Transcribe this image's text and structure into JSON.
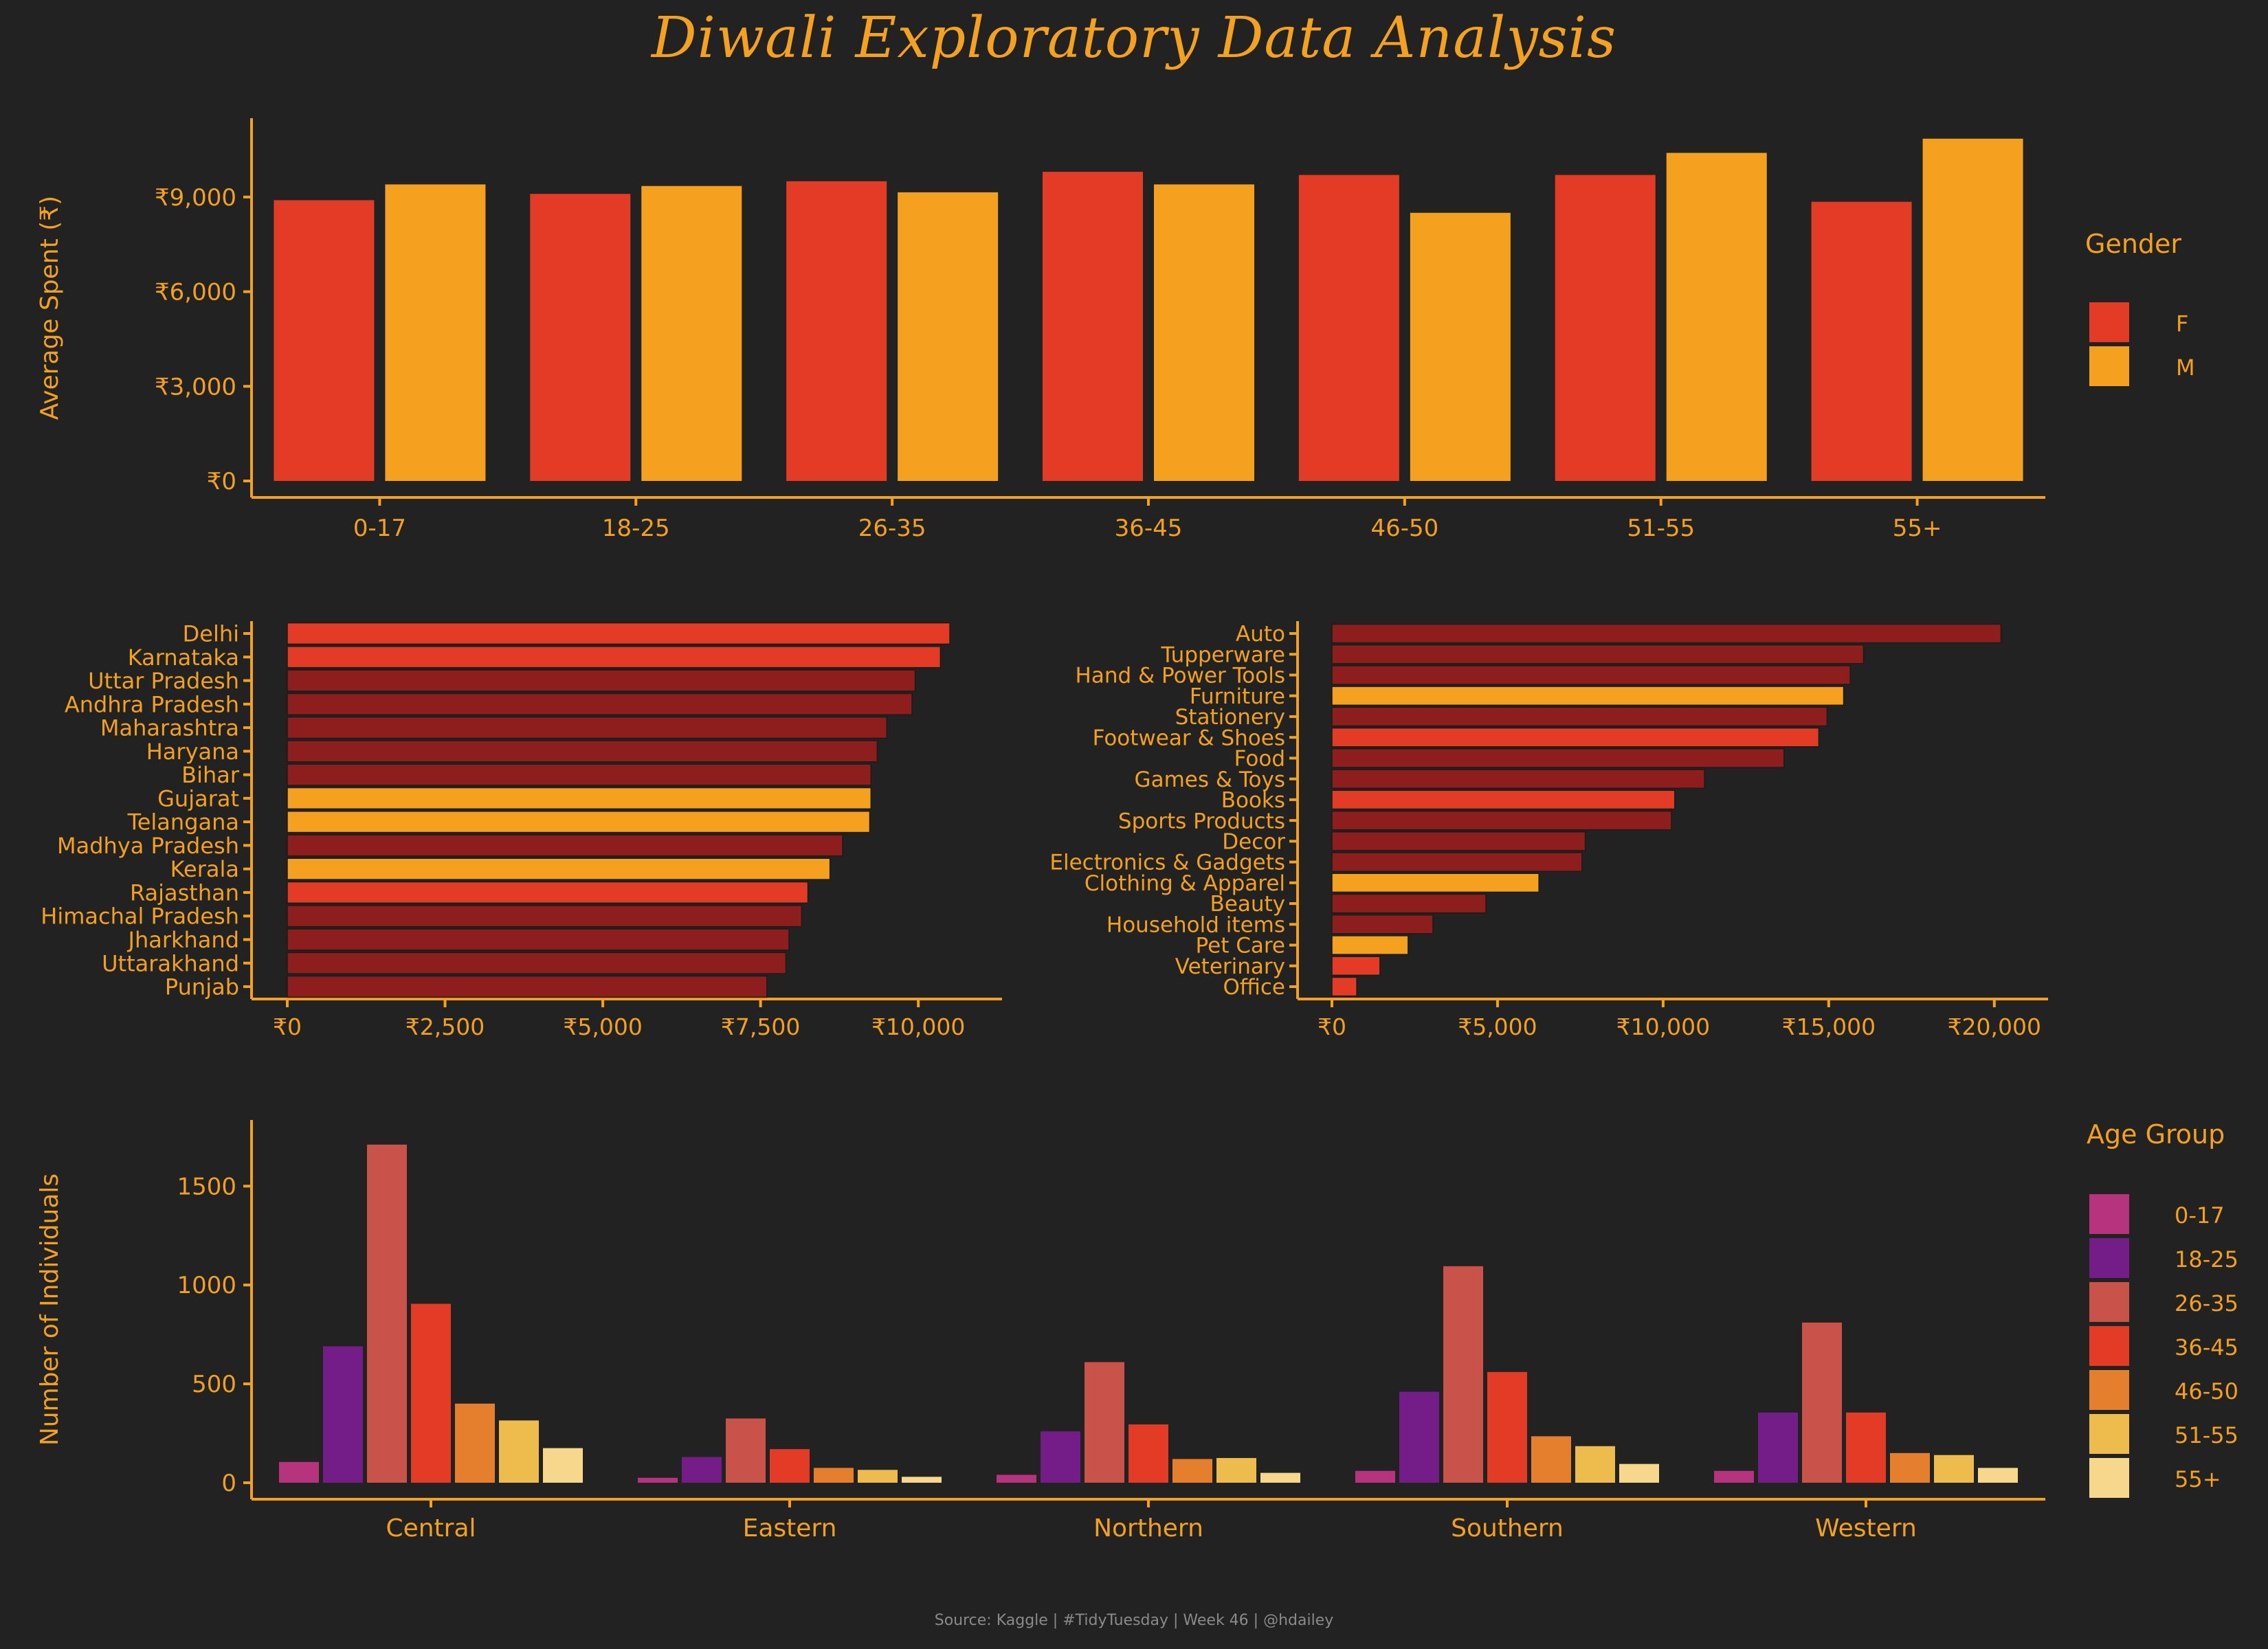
{
  "title": "Diwali Exploratory Data Analysis",
  "caption": "Source: Kaggle | #TidyTuesday | Week 46 | @hdailey",
  "colors": {
    "background": "#222222",
    "text": "#F4A020",
    "axis": "#F4A020",
    "female": "#E33B26",
    "male": "#F6A020",
    "dark_red": "#8E1D1D"
  },
  "chart_data": [
    {
      "id": "spend-by-age-gender",
      "type": "bar",
      "ylabel": "Average Spent (₹)",
      "xlabel": "",
      "categories": [
        "0-17",
        "18-25",
        "26-35",
        "36-45",
        "46-50",
        "51-55",
        "55+"
      ],
      "series": [
        {
          "name": "F",
          "color": "#E33B26",
          "values": [
            8900,
            9100,
            9500,
            9800,
            9700,
            9700,
            8850
          ]
        },
        {
          "name": "M",
          "color": "#F6A020",
          "values": [
            9400,
            9350,
            9150,
            9400,
            8500,
            10400,
            10850
          ]
        }
      ],
      "ylim": [
        0,
        11500
      ],
      "yticks": [
        0,
        3000,
        6000,
        9000
      ],
      "ytick_labels": [
        "₹0",
        "₹3,000",
        "₹6,000",
        "₹9,000"
      ],
      "legend": {
        "title": "Gender",
        "position": "right"
      }
    },
    {
      "id": "spend-by-state",
      "type": "bar",
      "orientation": "horizontal",
      "categories": [
        "Delhi",
        "Karnataka",
        "Uttar Pradesh",
        "Andhra Pradesh",
        "Maharashtra",
        "Haryana",
        "Bihar",
        "Gujarat",
        "Telangana",
        "Madhya Pradesh",
        "Kerala",
        "Rajasthan",
        "Himachal Pradesh",
        "Jharkhand",
        "Uttarakhand",
        "Punjab"
      ],
      "values": [
        10500,
        10350,
        9950,
        9900,
        9500,
        9350,
        9250,
        9250,
        9230,
        8800,
        8600,
        8250,
        8150,
        7950,
        7900,
        7600
      ],
      "colors": [
        "#E33B26",
        "#E33B26",
        "#8E1D1D",
        "#8E1D1D",
        "#8E1D1D",
        "#8E1D1D",
        "#8E1D1D",
        "#F6A020",
        "#F6A020",
        "#8E1D1D",
        "#F6A020",
        "#E33B26",
        "#8E1D1D",
        "#8E1D1D",
        "#8E1D1D",
        "#8E1D1D"
      ],
      "xlim": [
        0,
        11000
      ],
      "xticks": [
        0,
        2500,
        5000,
        7500,
        10000
      ],
      "xtick_labels": [
        "₹0",
        "₹2,500",
        "₹5,000",
        "₹7,500",
        "₹10,000"
      ]
    },
    {
      "id": "spend-by-product",
      "type": "bar",
      "orientation": "horizontal",
      "categories": [
        "Auto",
        "Tupperware",
        "Hand & Power Tools",
        "Furniture",
        "Stationery",
        "Footwear & Shoes",
        "Food",
        "Games & Toys",
        "Books",
        "Sports Products",
        "Decor",
        "Electronics & Gadgets",
        "Clothing & Apparel",
        "Beauty",
        "Household items",
        "Pet Care",
        "Veterinary",
        "Office"
      ],
      "values": [
        20200,
        16050,
        15650,
        15450,
        14950,
        14700,
        13650,
        11250,
        10350,
        10250,
        7650,
        7550,
        6250,
        4650,
        3050,
        2300,
        1450,
        750
      ],
      "colors": [
        "#8E1D1D",
        "#8E1D1D",
        "#8E1D1D",
        "#F6A020",
        "#8E1D1D",
        "#E33B26",
        "#8E1D1D",
        "#8E1D1D",
        "#E33B26",
        "#8E1D1D",
        "#8E1D1D",
        "#8E1D1D",
        "#F6A020",
        "#8E1D1D",
        "#8E1D1D",
        "#F6A020",
        "#E33B26",
        "#E33B26"
      ],
      "xlim": [
        0,
        21000
      ],
      "xticks": [
        0,
        5000,
        10000,
        15000,
        20000
      ],
      "xtick_labels": [
        "₹0",
        "₹5,000",
        "₹10,000",
        "₹15,000",
        "₹20,000"
      ]
    },
    {
      "id": "individuals-by-zone-age",
      "type": "bar",
      "ylabel": "Number of Individuals",
      "xlabel": "",
      "categories": [
        "Central",
        "Eastern",
        "Northern",
        "Southern",
        "Western"
      ],
      "series": [
        {
          "name": "0-17",
          "color": "#B8337D",
          "values": [
            105,
            25,
            40,
            60,
            60
          ]
        },
        {
          "name": "18-25",
          "color": "#741C87",
          "values": [
            690,
            130,
            260,
            460,
            355
          ]
        },
        {
          "name": "26-35",
          "color": "#C9534A",
          "values": [
            1710,
            325,
            610,
            1095,
            810
          ]
        },
        {
          "name": "36-45",
          "color": "#E33B26",
          "values": [
            905,
            170,
            295,
            560,
            355
          ]
        },
        {
          "name": "46-50",
          "color": "#E57F2E",
          "values": [
            400,
            75,
            120,
            235,
            150
          ]
        },
        {
          "name": "51-55",
          "color": "#EEBB4D",
          "values": [
            315,
            65,
            125,
            185,
            140
          ]
        },
        {
          "name": "55+",
          "color": "#F7D78C",
          "values": [
            175,
            30,
            50,
            95,
            75
          ]
        }
      ],
      "ylim": [
        -50,
        1800
      ],
      "yticks": [
        0,
        500,
        1000,
        1500
      ],
      "ytick_labels": [
        "0",
        "500",
        "1000",
        "1500"
      ],
      "legend": {
        "title": "Age Group",
        "position": "right"
      }
    }
  ]
}
